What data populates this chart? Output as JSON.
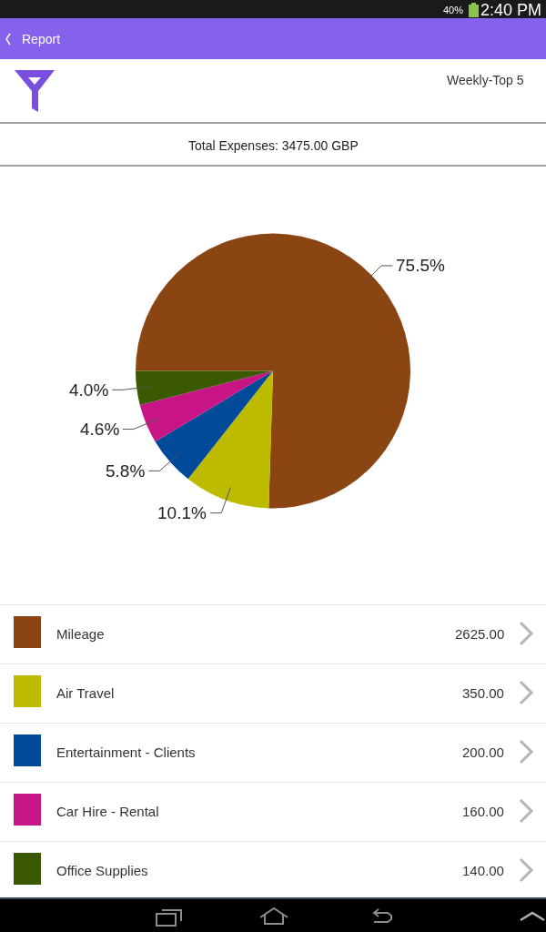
{
  "chart_data": {
    "type": "pie",
    "title": "Report",
    "subtitle": "Total Expenses: 3475.00 GBP",
    "categories": [
      "Mileage",
      "Air Travel",
      "Entertainment - Clients",
      "Car Hire - Rental",
      "Office Supplies"
    ],
    "values": [
      75.5,
      10.1,
      5.8,
      4.6,
      4.0
    ],
    "colors": [
      "#8b4513",
      "#bdbb00",
      "#004a99",
      "#c71585",
      "#3b5900"
    ],
    "value_labels": [
      "75.5%",
      "10.1%",
      "5.8%",
      "4.6%",
      "4.0%"
    ],
    "legend": "bottom",
    "annotations": [
      "Weekly-Top 5",
      "40%",
      "2:40 PM",
      "2625.00",
      "350.00",
      "200.00",
      "160.00",
      "140.00"
    ]
  }
}
